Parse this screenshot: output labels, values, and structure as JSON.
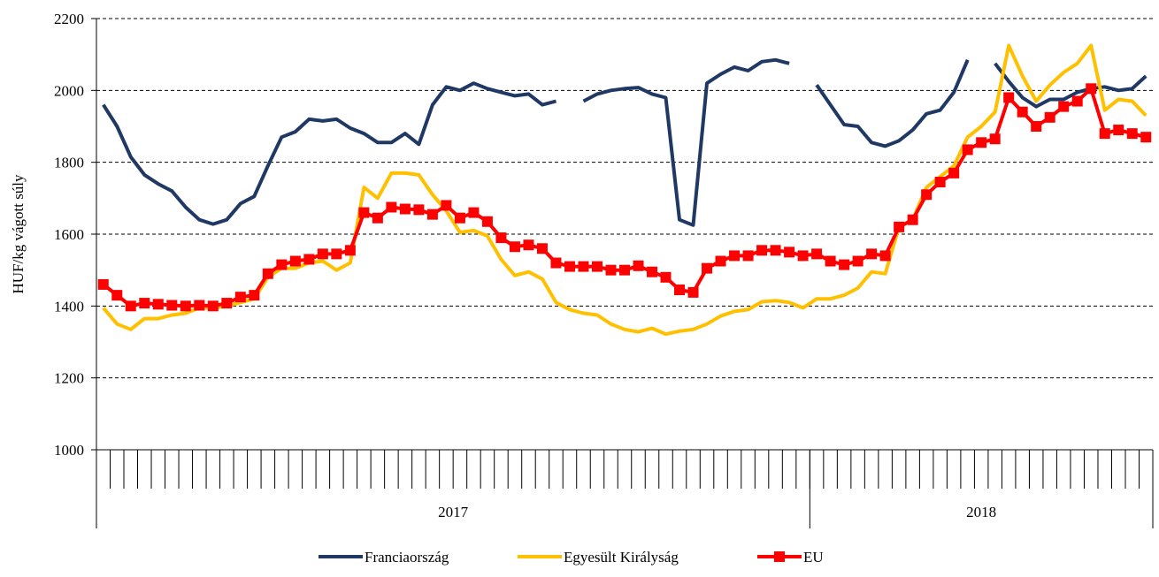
{
  "chart_data": {
    "type": "line",
    "y_label": "HUF/kg vágott súly",
    "categories": [
      null,
      null,
      null,
      null,
      null,
      null,
      null,
      null,
      null,
      null,
      null,
      null,
      null,
      null,
      null,
      null,
      null,
      null,
      null,
      null,
      null,
      null,
      null,
      null,
      null,
      null,
      null,
      null,
      null,
      null,
      null,
      null,
      null,
      null,
      null,
      null,
      null,
      null,
      null,
      null,
      null,
      null,
      null,
      null,
      null,
      null,
      null,
      null,
      null,
      null,
      null,
      null,
      null,
      null,
      null,
      null,
      null,
      null,
      null,
      null,
      null,
      null,
      null,
      null,
      null,
      null,
      null,
      null,
      null,
      null,
      null,
      null,
      null,
      null,
      null,
      null,
      null
    ],
    "groups": [
      {
        "name": "2017",
        "size": 52
      },
      {
        "name": "2018",
        "size": 25
      }
    ],
    "series": [
      {
        "name": "Franciaország",
        "color": "#1f3864",
        "marker": false,
        "values": [
          1960,
          1900,
          1815,
          1765,
          1740,
          1720,
          1675,
          1640,
          1628,
          1640,
          1685,
          1705,
          1790,
          1870,
          1885,
          1920,
          1915,
          1920,
          1895,
          1880,
          1855,
          1855,
          1880,
          1850,
          1960,
          2010,
          2000,
          2020,
          2005,
          1995,
          1985,
          1990,
          1960,
          1970,
          null,
          1970,
          1990,
          2000,
          2005,
          2008,
          1990,
          1980,
          1640,
          1625,
          2020,
          2045,
          2065,
          2055,
          2080,
          2085,
          2075,
          null,
          2015,
          1960,
          1905,
          1900,
          1855,
          1845,
          1860,
          1890,
          1935,
          1945,
          1995,
          2085,
          null,
          2075,
          2025,
          1980,
          1955,
          1975,
          1975,
          1995,
          2005,
          2010,
          2000,
          2005,
          2040
        ]
      },
      {
        "name": "Egyesült Királyság",
        "color": "#ffc000",
        "marker": false,
        "values": [
          1395,
          1350,
          1335,
          1365,
          1365,
          1375,
          1380,
          1395,
          1395,
          1400,
          1410,
          1420,
          1480,
          1505,
          1505,
          1520,
          1525,
          1500,
          1520,
          1730,
          1700,
          1770,
          1770,
          1765,
          1710,
          1665,
          1605,
          1610,
          1595,
          1530,
          1485,
          1495,
          1475,
          1410,
          1390,
          1380,
          1375,
          1350,
          1335,
          1328,
          1338,
          1322,
          1330,
          1335,
          1350,
          1372,
          1385,
          1390,
          1412,
          1415,
          1410,
          1395,
          1420,
          1420,
          1430,
          1450,
          1495,
          1490,
          1620,
          1640,
          1730,
          1760,
          1790,
          1870,
          1900,
          1940,
          2125,
          2040,
          1970,
          2015,
          2050,
          2075,
          2125,
          1945,
          1975,
          1970,
          1930
        ]
      },
      {
        "name": "EU",
        "color": "#ff0000",
        "marker": true,
        "values": [
          1460,
          1430,
          1400,
          1408,
          1405,
          1402,
          1400,
          1402,
          1400,
          1408,
          1425,
          1430,
          1490,
          1515,
          1525,
          1530,
          1545,
          1545,
          1555,
          1660,
          1645,
          1675,
          1670,
          1668,
          1655,
          1680,
          1645,
          1660,
          1635,
          1590,
          1565,
          1570,
          1560,
          1520,
          1510,
          1510,
          1510,
          1500,
          1500,
          1512,
          1495,
          1480,
          1445,
          1438,
          1505,
          1525,
          1540,
          1540,
          1555,
          1555,
          1550,
          1540,
          1545,
          1525,
          1515,
          1525,
          1545,
          1540,
          1620,
          1640,
          1710,
          1745,
          1770,
          1835,
          1855,
          1865,
          1980,
          1940,
          1900,
          1925,
          1955,
          1970,
          2005,
          1880,
          1890,
          1880,
          1870
        ]
      }
    ],
    "ylim": [
      1000,
      2200
    ],
    "yticks": [
      1000,
      1200,
      1400,
      1600,
      1800,
      2000,
      2200
    ],
    "grid": true,
    "legend": "bottom"
  }
}
